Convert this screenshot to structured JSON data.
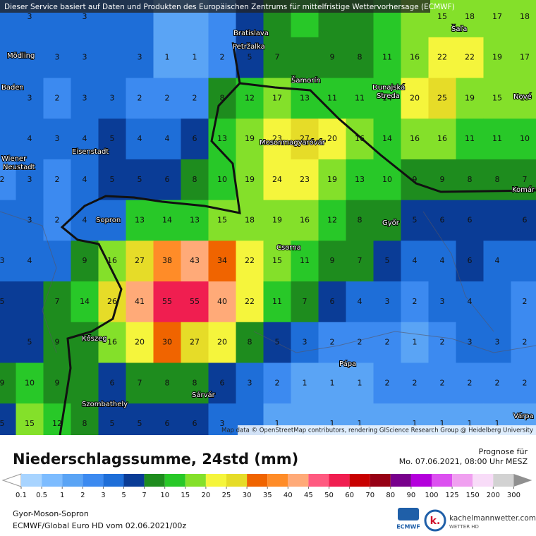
{
  "banner": "Dieser Service basiert auf Daten und Produkten des Europäischen Zentrums für mittelfristige Wettervorhersage (ECMWF)",
  "map": {
    "grid": [
      [
        null,
        3,
        null,
        3,
        null,
        null,
        null,
        null,
        null,
        null,
        null,
        null,
        null,
        null,
        null,
        null,
        15,
        18,
        17,
        18
      ],
      [
        null,
        null,
        3,
        3,
        null,
        3,
        1,
        1,
        2,
        5,
        7,
        null,
        9,
        8,
        11,
        16,
        22,
        22,
        19,
        17
      ],
      [
        null,
        3,
        2,
        3,
        3,
        2,
        2,
        2,
        8,
        12,
        17,
        13,
        11,
        11,
        14,
        20,
        25,
        19,
        15,
        15
      ],
      [
        null,
        4,
        3,
        4,
        5,
        4,
        4,
        6,
        13,
        19,
        23,
        27,
        20,
        16,
        14,
        16,
        16,
        11,
        11,
        10
      ],
      [
        2,
        3,
        2,
        4,
        5,
        5,
        6,
        8,
        10,
        19,
        24,
        23,
        19,
        13,
        10,
        9,
        9,
        8,
        8,
        7
      ],
      [
        null,
        3,
        2,
        4,
        null,
        13,
        14,
        13,
        15,
        18,
        19,
        16,
        12,
        8,
        null,
        5,
        6,
        6,
        null,
        6
      ],
      [
        3,
        4,
        null,
        9,
        16,
        27,
        38,
        43,
        34,
        22,
        15,
        11,
        9,
        7,
        5,
        4,
        4,
        6,
        4,
        null
      ],
      [
        5,
        null,
        7,
        14,
        26,
        41,
        55,
        55,
        40,
        22,
        11,
        7,
        6,
        4,
        3,
        2,
        3,
        4,
        null,
        2
      ],
      [
        null,
        5,
        9,
        null,
        16,
        20,
        30,
        27,
        20,
        8,
        5,
        3,
        2,
        2,
        2,
        1,
        2,
        3,
        3,
        2
      ],
      [
        9,
        10,
        9,
        null,
        6,
        7,
        8,
        8,
        6,
        3,
        2,
        1,
        1,
        1,
        2,
        2,
        2,
        2,
        2,
        2
      ],
      [
        5,
        15,
        12,
        8,
        5,
        5,
        6,
        6,
        3,
        null,
        1,
        null,
        1,
        1,
        null,
        1,
        1,
        1,
        1,
        null
      ]
    ],
    "places": [
      "Bratislava",
      "Petržalka",
      "Šaľa",
      "Mödling",
      "Baden",
      "Šamorín",
      "Dunajská",
      "Streda",
      "Nové",
      "Eisenstadt",
      "Mosonmagyaróvár",
      "Wiener",
      "Neustadt",
      "Komár",
      "Sopron",
      "Győr",
      "Csorna",
      "Kőszeg",
      "Pápa",
      "Szombathely",
      "Sárvár",
      "Várpa"
    ],
    "attribution": "Map data © OpenStreetMap contributors, rendering GIScience Research Group @ Heidelberg University"
  },
  "title": "Niederschlagssumme, 24std (mm)",
  "forecast": {
    "label": "Prognose für",
    "time": "Mo. 07.06.2021, 08:00 Uhr MESZ"
  },
  "legend": {
    "labels": [
      0.1,
      0.5,
      1,
      2,
      3,
      5,
      7,
      10,
      15,
      20,
      25,
      30,
      35,
      40,
      45,
      50,
      60,
      70,
      80,
      90,
      100,
      125,
      150,
      200,
      300
    ],
    "colors": [
      "#a8d4ff",
      "#7dbcff",
      "#5aa4f5",
      "#3c8af0",
      "#1e6ed8",
      "#0a3c96",
      "#1e8c1e",
      "#28c828",
      "#84e02a",
      "#f5f53c",
      "#e6dc28",
      "#f06400",
      "#ff8c28",
      "#ffaa78",
      "#ff5a80",
      "#f01e50",
      "#c80000",
      "#960014",
      "#78008c",
      "#b400dc",
      "#dc50f0",
      "#f0a0f0",
      "#f8dcf8",
      "#d2d2d2"
    ],
    "low_color": "#ffffff",
    "high_color": "#909090"
  },
  "region": "Gyor-Moson-Sopron",
  "model": "ECMWF/Global Euro HD vom  02.06.2021/00z",
  "logos": {
    "ecmwf": "ECMWF",
    "mark": "k.",
    "site": "kachelmannwetter.com",
    "sub": "WETTER HD"
  }
}
